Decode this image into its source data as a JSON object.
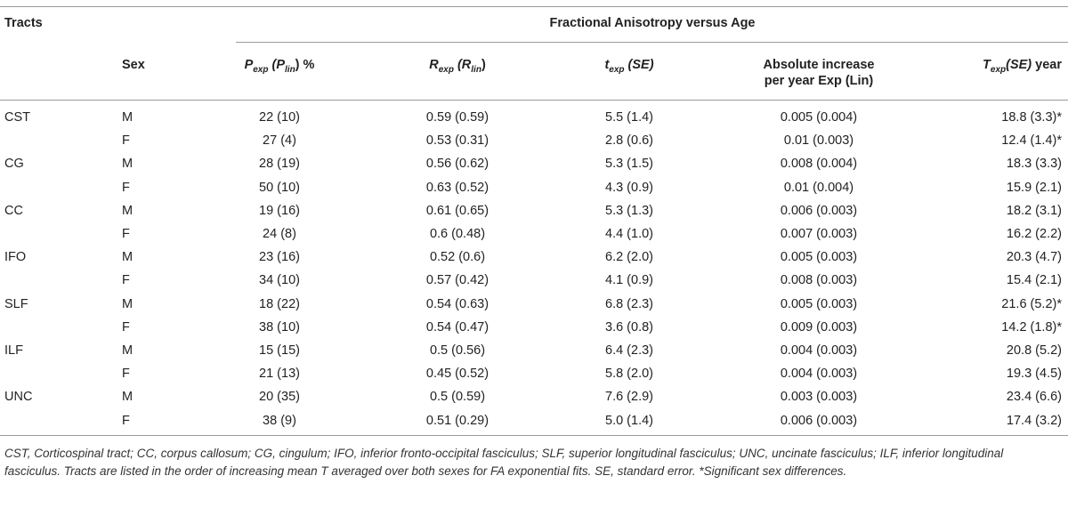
{
  "table": {
    "col_tracts": "Tracts",
    "group_title": "Fractional Anisotropy versus Age",
    "col_sex": "Sex",
    "col_p": {
      "main": "P",
      "sub1": "exp",
      "mid": " (P",
      "sub2": "lin",
      "end": ") %"
    },
    "col_r": {
      "main": "R",
      "sub1": "exp",
      "mid": " (R",
      "sub2": "lin",
      "end": ")"
    },
    "col_t": {
      "main": "t",
      "sub1": "exp",
      "end": " (SE)"
    },
    "col_abs": {
      "line1": "Absolute increase",
      "line2": "per year Exp (Lin)"
    },
    "col_T": {
      "main": "T",
      "sub1": "exp",
      "mid": "(SE)",
      "end": " year"
    },
    "rows": [
      {
        "tract": "CST",
        "sex": "M",
        "p": "22 (10)",
        "r": "0.59 (0.59)",
        "t": "5.5 (1.4)",
        "abs": "0.005 (0.004)",
        "T": "18.8 (3.3)*"
      },
      {
        "tract": "",
        "sex": "F",
        "p": "27 (4)",
        "r": "0.53 (0.31)",
        "t": "2.8 (0.6)",
        "abs": "0.01 (0.003)",
        "T": "12.4 (1.4)*"
      },
      {
        "tract": "CG",
        "sex": "M",
        "p": "28 (19)",
        "r": "0.56 (0.62)",
        "t": "5.3 (1.5)",
        "abs": "0.008 (0.004)",
        "T": "18.3 (3.3)"
      },
      {
        "tract": "",
        "sex": "F",
        "p": "50 (10)",
        "r": "0.63 (0.52)",
        "t": "4.3 (0.9)",
        "abs": "0.01 (0.004)",
        "T": "15.9 (2.1)"
      },
      {
        "tract": "CC",
        "sex": "M",
        "p": "19 (16)",
        "r": "0.61 (0.65)",
        "t": "5.3 (1.3)",
        "abs": "0.006 (0.003)",
        "T": "18.2 (3.1)"
      },
      {
        "tract": "",
        "sex": "F",
        "p": "24 (8)",
        "r": "0.6 (0.48)",
        "t": "4.4 (1.0)",
        "abs": "0.007 (0.003)",
        "T": "16.2 (2.2)"
      },
      {
        "tract": "IFO",
        "sex": "M",
        "p": "23 (16)",
        "r": "0.52 (0.6)",
        "t": "6.2 (2.0)",
        "abs": "0.005 (0.003)",
        "T": "20.3 (4.7)"
      },
      {
        "tract": "",
        "sex": "F",
        "p": "34 (10)",
        "r": "0.57 (0.42)",
        "t": "4.1 (0.9)",
        "abs": "0.008 (0.003)",
        "T": "15.4 (2.1)"
      },
      {
        "tract": "SLF",
        "sex": "M",
        "p": "18 (22)",
        "r": "0.54 (0.63)",
        "t": "6.8 (2.3)",
        "abs": "0.005 (0.003)",
        "T": "21.6 (5.2)*"
      },
      {
        "tract": "",
        "sex": "F",
        "p": "38 (10)",
        "r": "0.54 (0.47)",
        "t": "3.6 (0.8)",
        "abs": "0.009 (0.003)",
        "T": "14.2 (1.8)*"
      },
      {
        "tract": "ILF",
        "sex": "M",
        "p": "15 (15)",
        "r": "0.5 (0.56)",
        "t": "6.4 (2.3)",
        "abs": "0.004 (0.003)",
        "T": "20.8 (5.2)"
      },
      {
        "tract": "",
        "sex": "F",
        "p": "21 (13)",
        "r": "0.45 (0.52)",
        "t": "5.8 (2.0)",
        "abs": "0.004 (0.003)",
        "T": "19.3 (4.5)"
      },
      {
        "tract": "UNC",
        "sex": "M",
        "p": "20 (35)",
        "r": "0.5 (0.59)",
        "t": "7.6 (2.9)",
        "abs": "0.003 (0.003)",
        "T": "23.4 (6.6)"
      },
      {
        "tract": "",
        "sex": "F",
        "p": "38 (9)",
        "r": "0.51 (0.29)",
        "t": "5.0 (1.4)",
        "abs": "0.006 (0.003)",
        "T": "17.4 (3.2)"
      }
    ]
  },
  "footnote": "CST, Corticospinal tract; CC, corpus callosum; CG, cingulum; IFO, inferior fronto-occipital fasciculus; SLF, superior longitudinal fasciculus; UNC, uncinate fasciculus; ILF, inferior longitudinal fasciculus. Tracts are listed in the order of increasing mean T averaged over both sexes for FA exponential fits. SE, standard error. *Significant sex differences."
}
